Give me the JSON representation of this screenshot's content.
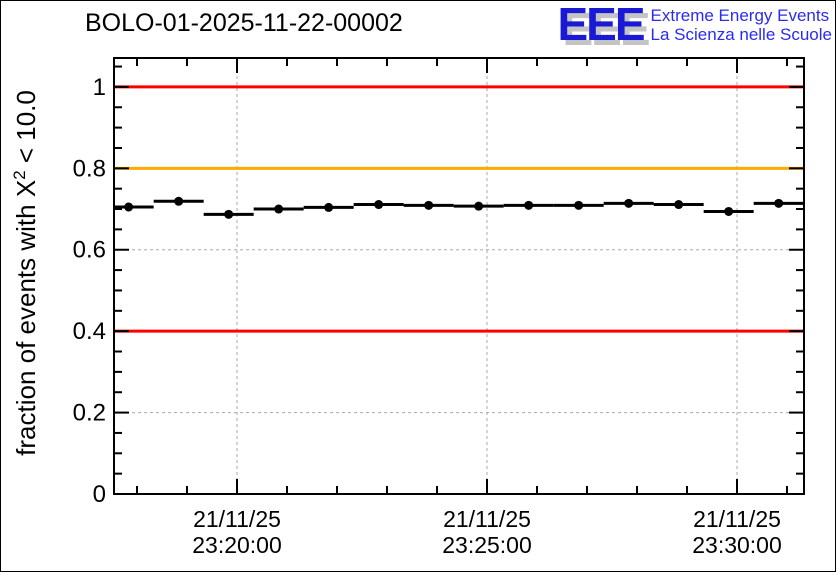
{
  "header": {
    "title": "BOLO-01-2025-11-22-00002",
    "logo": {
      "acronym": "EEE",
      "line1": "Extreme Energy Events",
      "line2": "La Scienza nelle Scuole",
      "acronym_color": "#1a1ad6",
      "shadow_color": "#c4c4c4",
      "text_color": "#2b2bf0"
    }
  },
  "chart_data": {
    "type": "line",
    "title": "BOLO-01-2025-11-22-00002",
    "ylabel": {
      "pre": "fraction of events with X",
      "sup": "2",
      "post": " < 10.0"
    },
    "xlabel": "",
    "grid": true,
    "grid_color": "#aaaaaa",
    "y_range": [
      0,
      1.071
    ],
    "y_major_ticks": [
      {
        "value": 0,
        "label": "0"
      },
      {
        "value": 0.2,
        "label": "0.2"
      },
      {
        "value": 0.4,
        "label": "0.4"
      },
      {
        "value": 0.6,
        "label": "0.6"
      },
      {
        "value": 0.8,
        "label": "0.8"
      },
      {
        "value": 1,
        "label": "1"
      }
    ],
    "y_minor_step": 0.05,
    "x_range_sec": [
      -147.6,
      680.4
    ],
    "x_major_ticks": [
      {
        "sec": 0,
        "date": "21/11/25",
        "time": "23:20:00"
      },
      {
        "sec": 300,
        "date": "21/11/25",
        "time": "23:25:00"
      },
      {
        "sec": 600,
        "date": "21/11/25",
        "time": "23:30:00"
      }
    ],
    "x_minor_step_sec": 60,
    "reference_lines": [
      {
        "value": 1.0,
        "color": "#ff0000"
      },
      {
        "value": 0.8,
        "color": "#ffaa00"
      },
      {
        "value": 0.4,
        "color": "#ff0000"
      }
    ],
    "series": [
      {
        "marker": "circle",
        "color": "#000000",
        "x_half_width_sec": 30,
        "points": [
          {
            "time": "23:17:50",
            "sec": -130,
            "value": 0.705
          },
          {
            "time": "23:18:50",
            "sec": -70,
            "value": 0.719
          },
          {
            "time": "23:19:50",
            "sec": -10,
            "value": 0.687
          },
          {
            "time": "23:20:50",
            "sec": 50,
            "value": 0.7
          },
          {
            "time": "23:21:50",
            "sec": 110,
            "value": 0.704
          },
          {
            "time": "23:22:50",
            "sec": 170,
            "value": 0.711
          },
          {
            "time": "23:23:50",
            "sec": 230,
            "value": 0.709
          },
          {
            "time": "23:24:50",
            "sec": 290,
            "value": 0.707
          },
          {
            "time": "23:25:50",
            "sec": 350,
            "value": 0.709
          },
          {
            "time": "23:26:50",
            "sec": 410,
            "value": 0.709
          },
          {
            "time": "23:27:50",
            "sec": 470,
            "value": 0.714
          },
          {
            "time": "23:28:50",
            "sec": 530,
            "value": 0.711
          },
          {
            "time": "23:29:50",
            "sec": 590,
            "value": 0.694
          },
          {
            "time": "23:30:50",
            "sec": 650,
            "value": 0.714
          }
        ]
      }
    ]
  }
}
